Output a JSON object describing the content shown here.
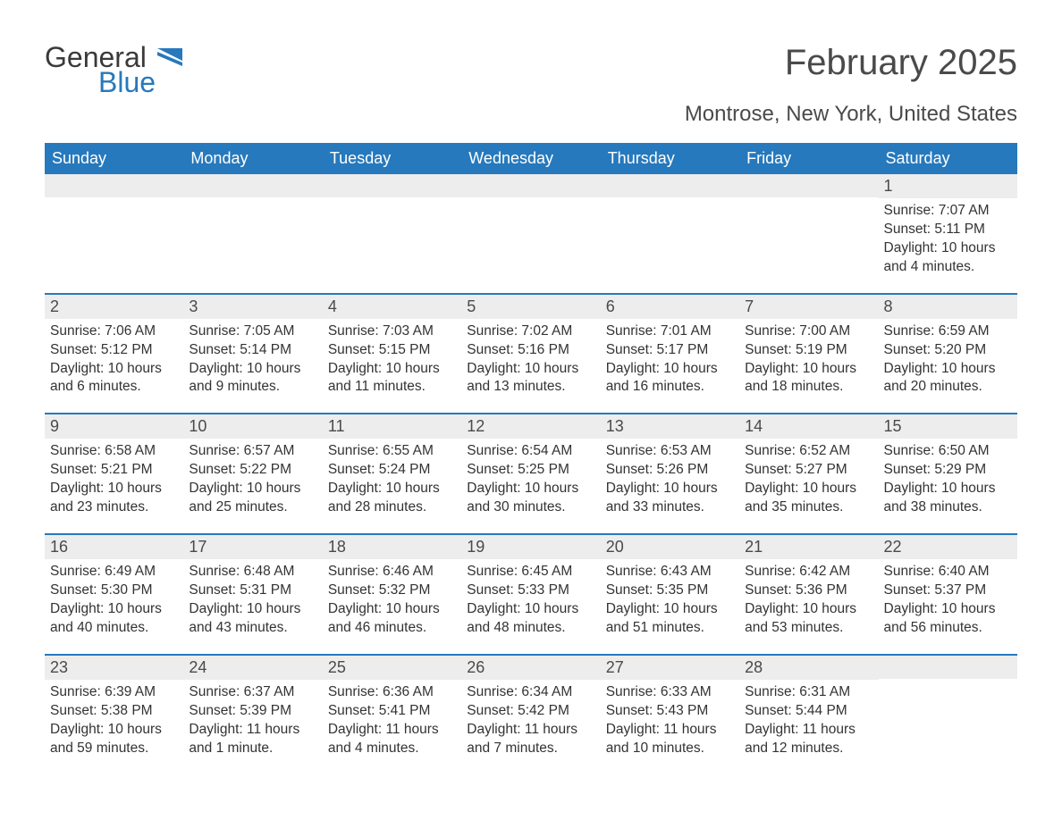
{
  "logo": {
    "general": "General",
    "blue": "Blue"
  },
  "title": "February 2025",
  "location": "Montrose, New York, United States",
  "header_bg": "#2679bd",
  "header_fg": "#ffffff",
  "band_bg": "#ededed",
  "text_color": "#333333",
  "weekdays": [
    "Sunday",
    "Monday",
    "Tuesday",
    "Wednesday",
    "Thursday",
    "Friday",
    "Saturday"
  ],
  "weeks": [
    [
      {
        "day": "",
        "sunrise": "",
        "sunset": "",
        "daylight": ""
      },
      {
        "day": "",
        "sunrise": "",
        "sunset": "",
        "daylight": ""
      },
      {
        "day": "",
        "sunrise": "",
        "sunset": "",
        "daylight": ""
      },
      {
        "day": "",
        "sunrise": "",
        "sunset": "",
        "daylight": ""
      },
      {
        "day": "",
        "sunrise": "",
        "sunset": "",
        "daylight": ""
      },
      {
        "day": "",
        "sunrise": "",
        "sunset": "",
        "daylight": ""
      },
      {
        "day": "1",
        "sunrise": "Sunrise: 7:07 AM",
        "sunset": "Sunset: 5:11 PM",
        "daylight": "Daylight: 10 hours and 4 minutes."
      }
    ],
    [
      {
        "day": "2",
        "sunrise": "Sunrise: 7:06 AM",
        "sunset": "Sunset: 5:12 PM",
        "daylight": "Daylight: 10 hours and 6 minutes."
      },
      {
        "day": "3",
        "sunrise": "Sunrise: 7:05 AM",
        "sunset": "Sunset: 5:14 PM",
        "daylight": "Daylight: 10 hours and 9 minutes."
      },
      {
        "day": "4",
        "sunrise": "Sunrise: 7:03 AM",
        "sunset": "Sunset: 5:15 PM",
        "daylight": "Daylight: 10 hours and 11 minutes."
      },
      {
        "day": "5",
        "sunrise": "Sunrise: 7:02 AM",
        "sunset": "Sunset: 5:16 PM",
        "daylight": "Daylight: 10 hours and 13 minutes."
      },
      {
        "day": "6",
        "sunrise": "Sunrise: 7:01 AM",
        "sunset": "Sunset: 5:17 PM",
        "daylight": "Daylight: 10 hours and 16 minutes."
      },
      {
        "day": "7",
        "sunrise": "Sunrise: 7:00 AM",
        "sunset": "Sunset: 5:19 PM",
        "daylight": "Daylight: 10 hours and 18 minutes."
      },
      {
        "day": "8",
        "sunrise": "Sunrise: 6:59 AM",
        "sunset": "Sunset: 5:20 PM",
        "daylight": "Daylight: 10 hours and 20 minutes."
      }
    ],
    [
      {
        "day": "9",
        "sunrise": "Sunrise: 6:58 AM",
        "sunset": "Sunset: 5:21 PM",
        "daylight": "Daylight: 10 hours and 23 minutes."
      },
      {
        "day": "10",
        "sunrise": "Sunrise: 6:57 AM",
        "sunset": "Sunset: 5:22 PM",
        "daylight": "Daylight: 10 hours and 25 minutes."
      },
      {
        "day": "11",
        "sunrise": "Sunrise: 6:55 AM",
        "sunset": "Sunset: 5:24 PM",
        "daylight": "Daylight: 10 hours and 28 minutes."
      },
      {
        "day": "12",
        "sunrise": "Sunrise: 6:54 AM",
        "sunset": "Sunset: 5:25 PM",
        "daylight": "Daylight: 10 hours and 30 minutes."
      },
      {
        "day": "13",
        "sunrise": "Sunrise: 6:53 AM",
        "sunset": "Sunset: 5:26 PM",
        "daylight": "Daylight: 10 hours and 33 minutes."
      },
      {
        "day": "14",
        "sunrise": "Sunrise: 6:52 AM",
        "sunset": "Sunset: 5:27 PM",
        "daylight": "Daylight: 10 hours and 35 minutes."
      },
      {
        "day": "15",
        "sunrise": "Sunrise: 6:50 AM",
        "sunset": "Sunset: 5:29 PM",
        "daylight": "Daylight: 10 hours and 38 minutes."
      }
    ],
    [
      {
        "day": "16",
        "sunrise": "Sunrise: 6:49 AM",
        "sunset": "Sunset: 5:30 PM",
        "daylight": "Daylight: 10 hours and 40 minutes."
      },
      {
        "day": "17",
        "sunrise": "Sunrise: 6:48 AM",
        "sunset": "Sunset: 5:31 PM",
        "daylight": "Daylight: 10 hours and 43 minutes."
      },
      {
        "day": "18",
        "sunrise": "Sunrise: 6:46 AM",
        "sunset": "Sunset: 5:32 PM",
        "daylight": "Daylight: 10 hours and 46 minutes."
      },
      {
        "day": "19",
        "sunrise": "Sunrise: 6:45 AM",
        "sunset": "Sunset: 5:33 PM",
        "daylight": "Daylight: 10 hours and 48 minutes."
      },
      {
        "day": "20",
        "sunrise": "Sunrise: 6:43 AM",
        "sunset": "Sunset: 5:35 PM",
        "daylight": "Daylight: 10 hours and 51 minutes."
      },
      {
        "day": "21",
        "sunrise": "Sunrise: 6:42 AM",
        "sunset": "Sunset: 5:36 PM",
        "daylight": "Daylight: 10 hours and 53 minutes."
      },
      {
        "day": "22",
        "sunrise": "Sunrise: 6:40 AM",
        "sunset": "Sunset: 5:37 PM",
        "daylight": "Daylight: 10 hours and 56 minutes."
      }
    ],
    [
      {
        "day": "23",
        "sunrise": "Sunrise: 6:39 AM",
        "sunset": "Sunset: 5:38 PM",
        "daylight": "Daylight: 10 hours and 59 minutes."
      },
      {
        "day": "24",
        "sunrise": "Sunrise: 6:37 AM",
        "sunset": "Sunset: 5:39 PM",
        "daylight": "Daylight: 11 hours and 1 minute."
      },
      {
        "day": "25",
        "sunrise": "Sunrise: 6:36 AM",
        "sunset": "Sunset: 5:41 PM",
        "daylight": "Daylight: 11 hours and 4 minutes."
      },
      {
        "day": "26",
        "sunrise": "Sunrise: 6:34 AM",
        "sunset": "Sunset: 5:42 PM",
        "daylight": "Daylight: 11 hours and 7 minutes."
      },
      {
        "day": "27",
        "sunrise": "Sunrise: 6:33 AM",
        "sunset": "Sunset: 5:43 PM",
        "daylight": "Daylight: 11 hours and 10 minutes."
      },
      {
        "day": "28",
        "sunrise": "Sunrise: 6:31 AM",
        "sunset": "Sunset: 5:44 PM",
        "daylight": "Daylight: 11 hours and 12 minutes."
      },
      {
        "day": "",
        "sunrise": "",
        "sunset": "",
        "daylight": ""
      }
    ]
  ]
}
